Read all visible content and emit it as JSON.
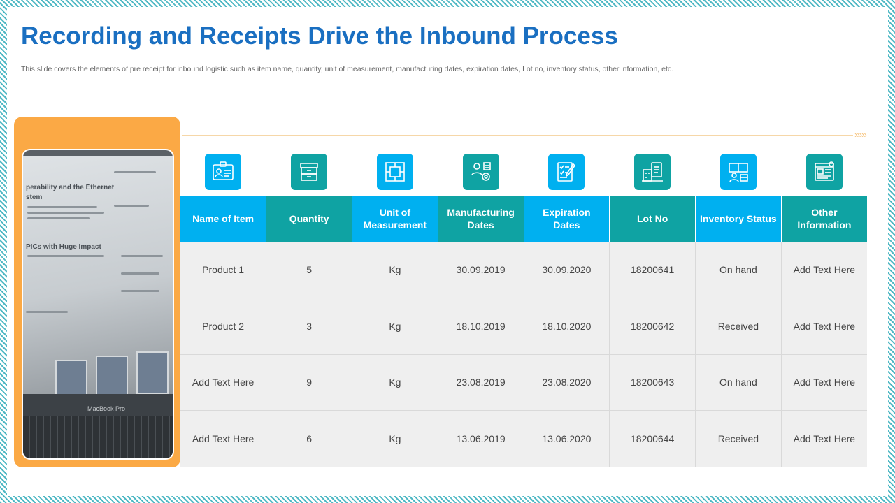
{
  "slide": {
    "title": "Recording and Receipts Drive the Inbound Process",
    "subtitle": "This slide covers the elements of pre receipt for inbound logistic such as item name, quantity, unit of measurement,  manufacturing dates, expiration dates, Lot no,  inventory status, other  information, etc."
  },
  "photo": {
    "heading_1": "perability and the Ethernet",
    "heading_2": "stem",
    "heading_3": "PICs with Huge Impact",
    "brand": "MacBook Pro"
  },
  "colors": {
    "blue": "#00b0f0",
    "teal": "#0fa3a3",
    "title": "#1a6fc1",
    "orange": "#fba945"
  },
  "columns": [
    {
      "label": "Name of Item",
      "icon": "id-card-icon",
      "color": "#00b0f0"
    },
    {
      "label": "Quantity",
      "icon": "storage-box-icon",
      "color": "#0fa3a3"
    },
    {
      "label": "Unit of Measurement",
      "icon": "measurement-icon",
      "color": "#00b0f0"
    },
    {
      "label": "Manufacturing Dates",
      "icon": "manufacturing-icon",
      "color": "#0fa3a3"
    },
    {
      "label": "Expiration Dates",
      "icon": "checklist-icon",
      "color": "#00b0f0"
    },
    {
      "label": "Lot No",
      "icon": "clipboard-building-icon",
      "color": "#0fa3a3"
    },
    {
      "label": "Inventory Status",
      "icon": "inventory-icon",
      "color": "#00b0f0"
    },
    {
      "label": "Other Information",
      "icon": "info-card-icon",
      "color": "#0fa3a3"
    }
  ],
  "rows": [
    [
      "Product 1",
      "5",
      "Kg",
      "30.09.2019",
      "30.09.2020",
      "18200641",
      "On hand",
      "Add Text Here"
    ],
    [
      "Product 2",
      "3",
      "Kg",
      "18.10.2019",
      "18.10.2020",
      "18200642",
      "Received",
      "Add Text Here"
    ],
    [
      "Add Text Here",
      "9",
      "Kg",
      "23.08.2019",
      "23.08.2020",
      "18200643",
      "On hand",
      "Add Text Here"
    ],
    [
      "Add Text Here",
      "6",
      "Kg",
      "13.06.2019",
      "13.06.2020",
      "18200644",
      "Received",
      "Add Text Here"
    ]
  ]
}
